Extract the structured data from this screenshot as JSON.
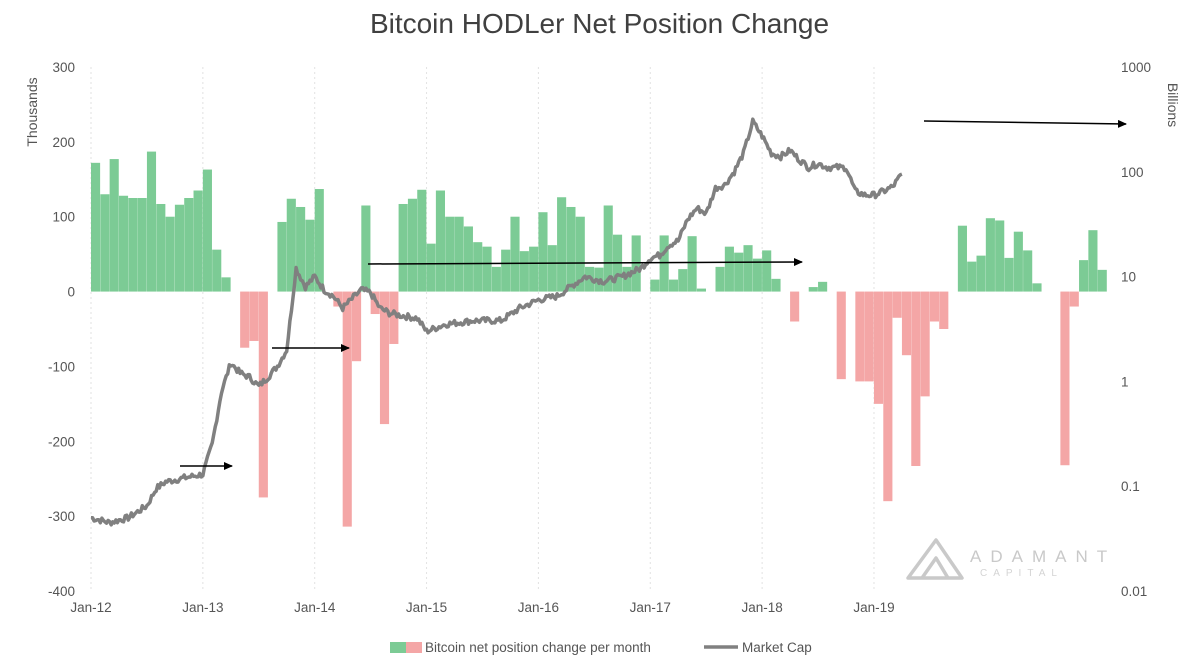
{
  "chart_data": {
    "type": "bar+line",
    "title": "Bitcoin HODLer Net Position Change",
    "y_left_label": "Thousands",
    "y_right_label": "Billions",
    "y_left_ticks": [
      "300",
      "200",
      "100",
      "0",
      "-100",
      "-200",
      "-300",
      "-400"
    ],
    "y_left_range": [
      -400,
      300
    ],
    "y_right_ticks": [
      "1000",
      "100",
      "10",
      "1",
      "0.1",
      "0.01"
    ],
    "y_right_range": [
      0.01,
      1000
    ],
    "y_right_scale": "log",
    "x_ticks": [
      "Jan-12",
      "Jan-13",
      "Jan-14",
      "Jan-15",
      "Jan-16",
      "Jan-17",
      "Jan-18",
      "Jan-19"
    ],
    "x_start": "2012-01",
    "grid": "vertical dotted at year ticks",
    "colors": {
      "positive": "#7ccb95",
      "negative": "#f4a6a6",
      "line": "#808080"
    },
    "series": [
      {
        "name": "Bitcoin net position change per month",
        "type": "bar",
        "values": [
          172,
          130,
          177,
          128,
          125,
          125,
          187,
          117,
          100,
          116,
          125,
          135,
          163,
          56,
          19,
          0,
          -75,
          -66,
          -275,
          0,
          93,
          124,
          113,
          96,
          137,
          0,
          -20,
          -314,
          -93,
          115,
          -30,
          -177,
          -70,
          117,
          124,
          136,
          64,
          135,
          100,
          100,
          87,
          66,
          60,
          33,
          56,
          100,
          54,
          60,
          106,
          62,
          126,
          113,
          100,
          33,
          32,
          115,
          76,
          33,
          75,
          0,
          16,
          75,
          16,
          30,
          74,
          4,
          0,
          33,
          60,
          52,
          62,
          44,
          55,
          17,
          0,
          -40,
          0,
          6,
          13,
          0,
          -117,
          0,
          -120,
          -120,
          -150,
          -280,
          -35,
          -85,
          -233,
          -140,
          -40,
          -50,
          0,
          88,
          40,
          48,
          98,
          95,
          45,
          80,
          55,
          11,
          0,
          0,
          -232,
          -20,
          42,
          82,
          29
        ]
      },
      {
        "name": "Market Cap",
        "type": "line",
        "x": [
          "2012-01",
          "2012-03",
          "2012-05",
          "2012-07",
          "2012-08",
          "2012-09",
          "2012-11",
          "2013-01",
          "2013-02",
          "2013-03",
          "2013-04",
          "2013-05",
          "2013-06",
          "2013-07",
          "2013-08",
          "2013-09",
          "2013-10",
          "2013-11",
          "2013-12",
          "2014-01",
          "2014-02",
          "2014-03",
          "2014-04",
          "2014-06",
          "2014-07",
          "2014-08",
          "2014-09",
          "2014-10",
          "2014-12",
          "2015-01",
          "2015-03",
          "2015-06",
          "2015-09",
          "2015-11",
          "2016-01",
          "2016-03",
          "2016-06",
          "2016-08",
          "2016-10",
          "2016-12",
          "2017-01",
          "2017-02",
          "2017-03",
          "2017-04",
          "2017-05",
          "2017-06",
          "2017-07",
          "2017-08",
          "2017-09",
          "2017-10",
          "2017-11",
          "2017-12",
          "2018-01",
          "2018-02",
          "2018-03",
          "2018-04",
          "2018-05",
          "2018-06",
          "2018-07",
          "2018-08",
          "2018-09",
          "2018-10",
          "2018-11",
          "2018-12",
          "2019-01",
          "2019-02",
          "2019-03",
          "2019-04"
        ],
        "values": [
          0.05,
          0.045,
          0.05,
          0.065,
          0.095,
          0.11,
          0.12,
          0.13,
          0.25,
          0.8,
          1.5,
          1.2,
          1.1,
          0.9,
          1.1,
          1.4,
          2.0,
          12.0,
          8.0,
          10.0,
          7.5,
          6.5,
          5.0,
          7.5,
          7.0,
          5.0,
          4.5,
          4.3,
          4.0,
          3.0,
          3.5,
          3.8,
          3.8,
          5.0,
          6.0,
          6.5,
          10.0,
          9.0,
          10.0,
          12.0,
          15.0,
          16.0,
          20.0,
          22.0,
          35.0,
          45.0,
          40.0,
          70.0,
          75.0,
          100.0,
          150.0,
          300.0,
          220.0,
          150.0,
          140.0,
          160.0,
          130.0,
          110.0,
          120.0,
          110.0,
          110.0,
          110.0,
          65.0,
          60.0,
          60.0,
          65.0,
          72.0,
          95.0
        ]
      }
    ]
  },
  "watermark": {
    "name": "ADAMANT",
    "sub": "CAPITAL"
  }
}
